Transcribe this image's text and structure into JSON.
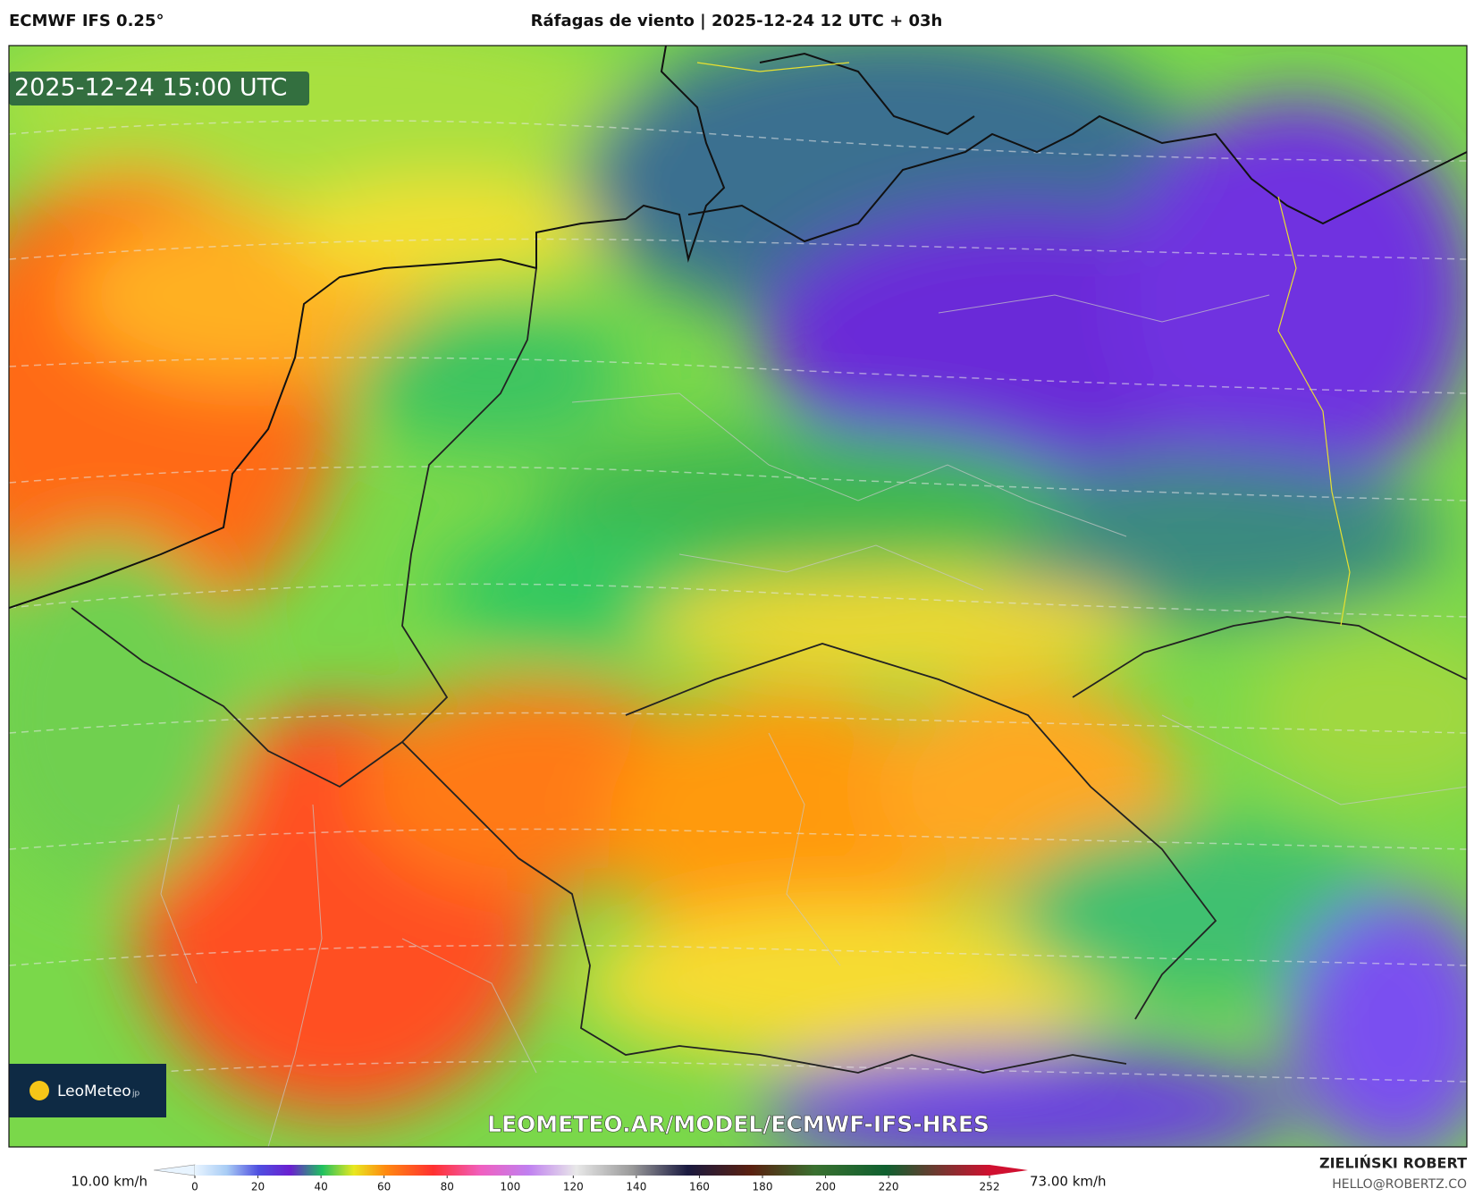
{
  "header": {
    "model": "ECMWF IFS 0.25°",
    "title": "Ráfagas de viento | 2025-12-24 12 UTC + 03h"
  },
  "map": {
    "valid_time": "2025-12-24 15:00 UTC",
    "logo": "LeoMeteo",
    "logo_suffix": "jp",
    "url": "LEOMETEO.AR/MODEL/ECMWF-IFS-HRES"
  },
  "colorbar": {
    "min_label": "10.00 km/h",
    "max_label": "73.00 km/h",
    "ticks": [
      0,
      20,
      40,
      60,
      80,
      100,
      120,
      140,
      160,
      180,
      200,
      220,
      252
    ]
  },
  "credits": {
    "author": "ZIELIŃSKI ROBERT",
    "email": "HELLO@ROBERTZ.CO"
  }
}
